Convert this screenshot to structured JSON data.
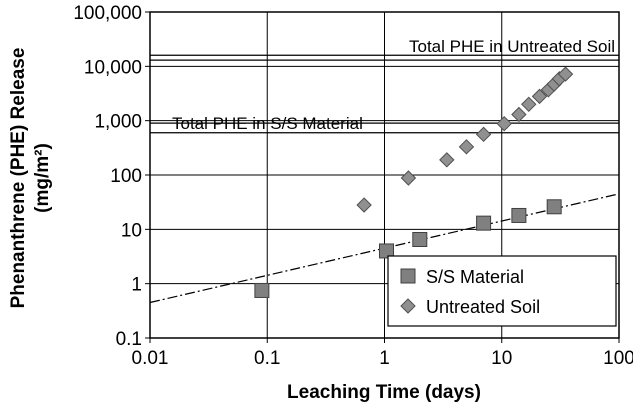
{
  "chart_data": {
    "type": "scatter",
    "xlabel": "Leaching Time (days)",
    "ylabel": [
      "Phenanthrene (PHE) Release",
      "(mg/m²)"
    ],
    "xlog": true,
    "ylog": true,
    "grid": true,
    "legend": "lower right",
    "xlim": [
      0.01,
      100
    ],
    "ylim": [
      0.1,
      100000
    ],
    "xticks": [
      0.01,
      0.1,
      1,
      10,
      100
    ],
    "yticks": [
      0.1,
      1,
      10,
      100,
      {
        "value": 1000,
        "label": "1,000"
      },
      {
        "value": 10000,
        "label": "10,000"
      },
      {
        "value": 100000,
        "label": "100,000"
      }
    ],
    "series": [
      {
        "name": "S/S Material",
        "marker": "square",
        "color": "#808080",
        "x": [
          0.09,
          1.04,
          2,
          7,
          14,
          28
        ],
        "values": [
          0.75,
          4,
          6.5,
          13,
          18,
          26
        ]
      },
      {
        "name": "Untreated Soil",
        "marker": "diamond",
        "color": "#909090",
        "x": [
          0.67,
          1.6,
          3.4,
          5,
          7,
          10.5,
          14,
          17,
          21,
          25,
          28,
          31,
          35
        ],
        "values": [
          28,
          88,
          190,
          330,
          560,
          880,
          1300,
          2000,
          2800,
          3700,
          4700,
          5900,
          7200
        ]
      }
    ],
    "trendline": {
      "x": [
        0.01,
        100
      ],
      "values": [
        0.45,
        45
      ]
    },
    "reference_lines": [
      {
        "label": "Total PHE in Untreated Soil",
        "values": [
          13000,
          16000
        ]
      },
      {
        "label": "Total PHE in S/S Material",
        "values": [
          600,
          900
        ]
      }
    ]
  }
}
